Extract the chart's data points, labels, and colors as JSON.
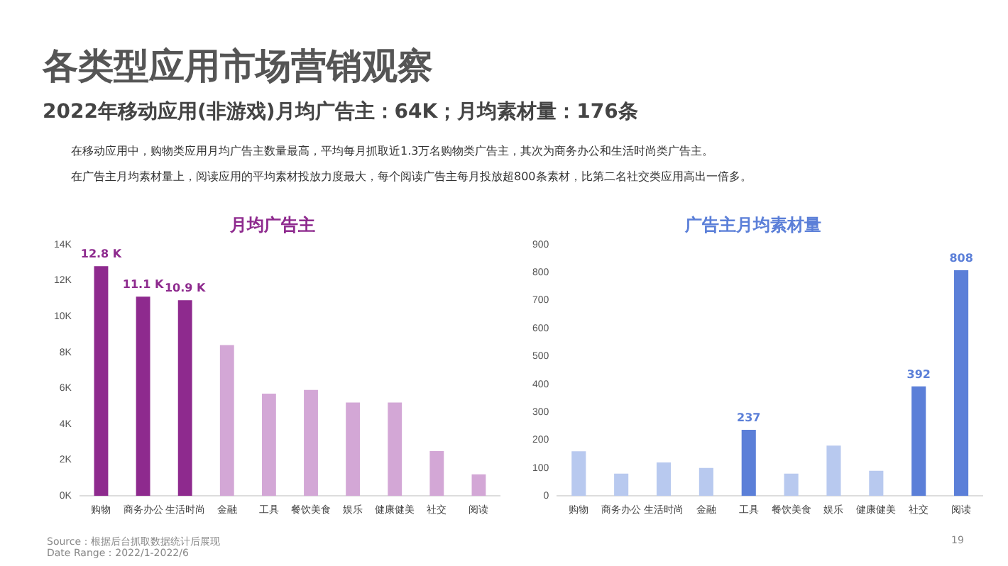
{
  "chart_data": [
    {
      "type": "bar",
      "title": "月均广告主",
      "categories": [
        "购物",
        "商务办公",
        "生活时尚",
        "金融",
        "工具",
        "餐饮美食",
        "娱乐",
        "健康健美",
        "社交",
        "阅读"
      ],
      "values": [
        12.8,
        11.1,
        10.9,
        8.4,
        5.7,
        5.9,
        5.2,
        5.2,
        2.5,
        1.2
      ],
      "colors": [
        "#8e2a8e",
        "#8e2a8e",
        "#8e2a8e",
        "#d3a7d6",
        "#d3a7d6",
        "#d3a7d6",
        "#d3a7d6",
        "#d3a7d6",
        "#d3a7d6",
        "#d3a7d6"
      ],
      "value_labels": [
        "12.8 K",
        "11.1 K",
        "10.9 K",
        null,
        null,
        null,
        null,
        null,
        null,
        null
      ],
      "ylim": [
        0,
        14
      ],
      "yticks": [
        {
          "value": 0,
          "label": "0K"
        },
        {
          "value": 2,
          "label": "2K"
        },
        {
          "value": 4,
          "label": "4K"
        },
        {
          "value": 6,
          "label": "6K"
        },
        {
          "value": 8,
          "label": "8K"
        },
        {
          "value": 10,
          "label": "10K"
        },
        {
          "value": 12,
          "label": "12K"
        },
        {
          "value": 14,
          "label": "14K"
        }
      ],
      "grid": false,
      "legend": false,
      "annotations": [
        "各类型应用市场营销观察",
        "2022年移动应用(非游戏)月均广告主：64K；月均素材量：176条",
        "在移动应用中，购物类应用月均广告主数量最高，平均每月抓取近1.3万名购物类广告主，其次为商务办公和生活时尚类广告主。",
        "在广告主月均素材量上，阅读应用的平均素材投放力度最大，每个阅读广告主每月投放超800条素材，比第二名社交类应用高出一倍多。",
        "Source：根据后台抓取数据统计后展现",
        "Date Range：2022/1-2022/6",
        "19"
      ]
    },
    {
      "type": "bar",
      "title": "广告主月均素材量",
      "categories": [
        "购物",
        "商务办公",
        "生活时尚",
        "金融",
        "工具",
        "餐饮美食",
        "娱乐",
        "健康健美",
        "社交",
        "阅读"
      ],
      "values": [
        160,
        80,
        120,
        100,
        237,
        80,
        180,
        90,
        392,
        808
      ],
      "colors": [
        "#b8c9ef",
        "#b8c9ef",
        "#b8c9ef",
        "#b8c9ef",
        "#5b7fd8",
        "#b8c9ef",
        "#b8c9ef",
        "#b8c9ef",
        "#5b7fd8",
        "#5b7fd8"
      ],
      "value_labels": [
        null,
        null,
        null,
        null,
        "237",
        null,
        null,
        null,
        "392",
        "808"
      ],
      "ylim": [
        0,
        900
      ],
      "yticks": [
        0,
        100,
        200,
        300,
        400,
        500,
        600,
        700,
        800,
        900
      ],
      "grid": false,
      "legend": false
    }
  ]
}
